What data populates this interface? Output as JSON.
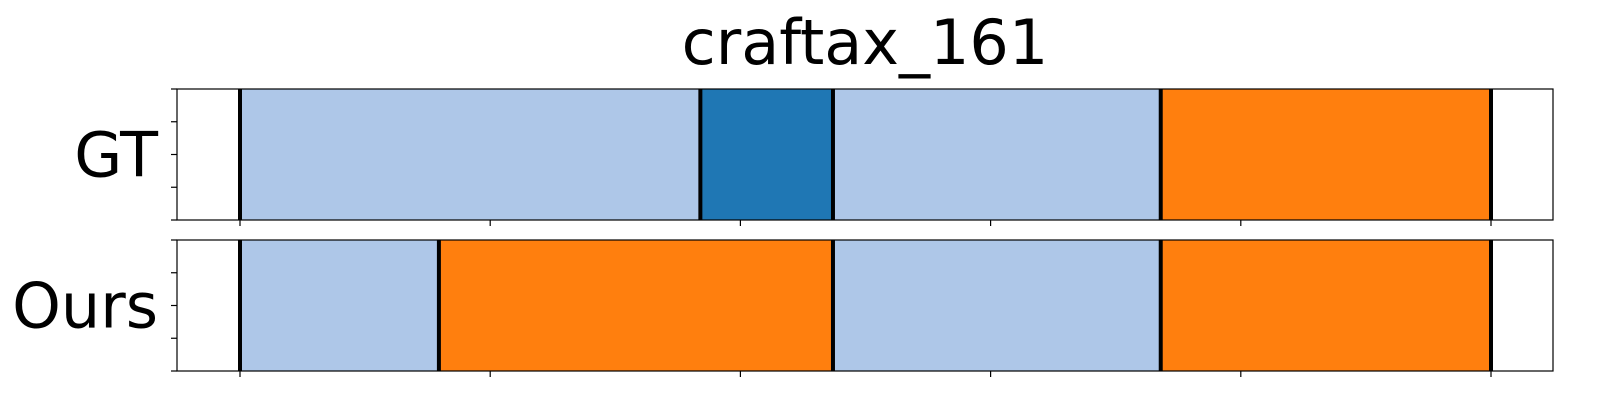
{
  "chart_data": {
    "type": "segmentation-timeline",
    "title": "craftax_161",
    "x_range": [
      0,
      100
    ],
    "x_ticks": [
      0,
      20,
      40,
      60,
      80,
      100
    ],
    "palette": {
      "light_blue": "#aec7e8",
      "dark_blue": "#1f77b4",
      "orange": "#ff7f0e",
      "boundary": "#000000"
    },
    "rows": [
      {
        "label": "GT",
        "segments": [
          {
            "start": 0,
            "end": 36.8,
            "color": "light_blue"
          },
          {
            "start": 36.8,
            "end": 47.4,
            "color": "dark_blue"
          },
          {
            "start": 47.4,
            "end": 73.6,
            "color": "light_blue"
          },
          {
            "start": 73.6,
            "end": 100,
            "color": "orange"
          }
        ]
      },
      {
        "label": "Ours",
        "segments": [
          {
            "start": 0,
            "end": 15.9,
            "color": "light_blue"
          },
          {
            "start": 15.9,
            "end": 47.4,
            "color": "orange"
          },
          {
            "start": 47.4,
            "end": 73.6,
            "color": "light_blue"
          },
          {
            "start": 73.6,
            "end": 100,
            "color": "orange"
          }
        ]
      }
    ]
  }
}
